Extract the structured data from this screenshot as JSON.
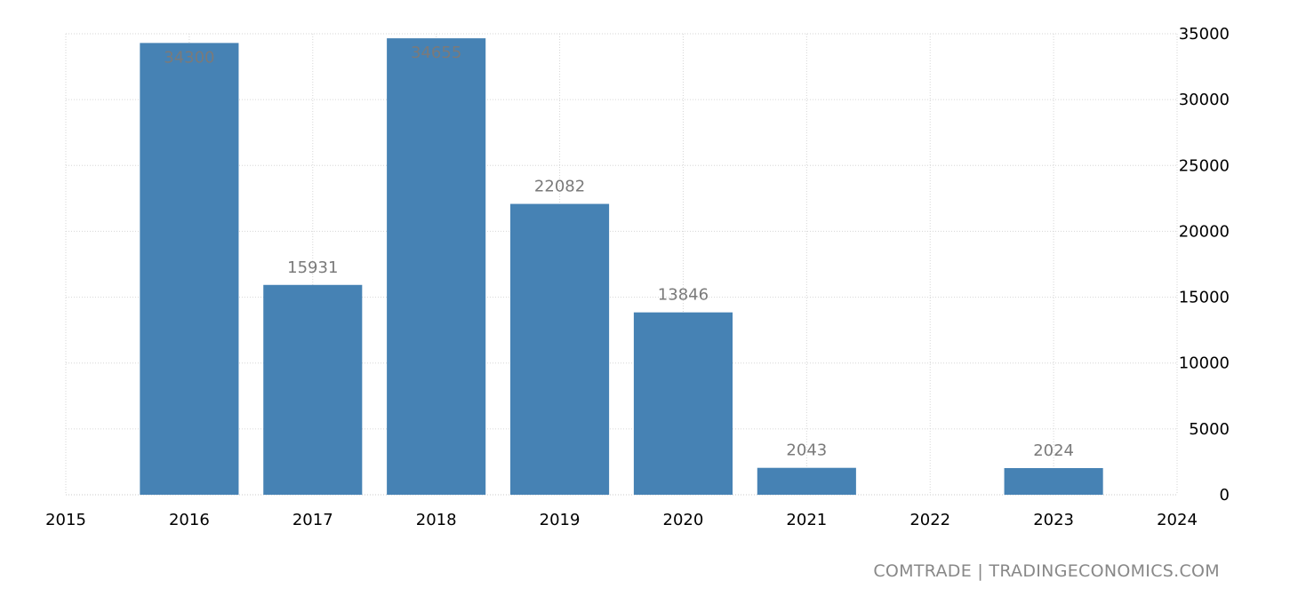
{
  "chart_data": {
    "type": "bar",
    "x_ticks": [
      2015,
      2016,
      2017,
      2018,
      2019,
      2020,
      2021,
      2022,
      2023,
      2024
    ],
    "categories": [
      "2016",
      "2017",
      "2018",
      "2019",
      "2020",
      "2021",
      "2023"
    ],
    "values": [
      34300,
      15931,
      34655,
      22082,
      13846,
      2043,
      2024
    ],
    "y_ticks": [
      0,
      5000,
      10000,
      15000,
      20000,
      25000,
      30000,
      35000
    ],
    "xlim": [
      2015,
      2024
    ],
    "ylim": [
      0,
      35000
    ],
    "y_axis_side": "right",
    "grid": true,
    "data_labels": true,
    "bar_color": "#4682b4",
    "label_color": "#7a7a7a",
    "title": "",
    "xlabel": "",
    "ylabel": ""
  },
  "footer": {
    "source": "COMTRADE | TRADINGECONOMICS.COM"
  }
}
